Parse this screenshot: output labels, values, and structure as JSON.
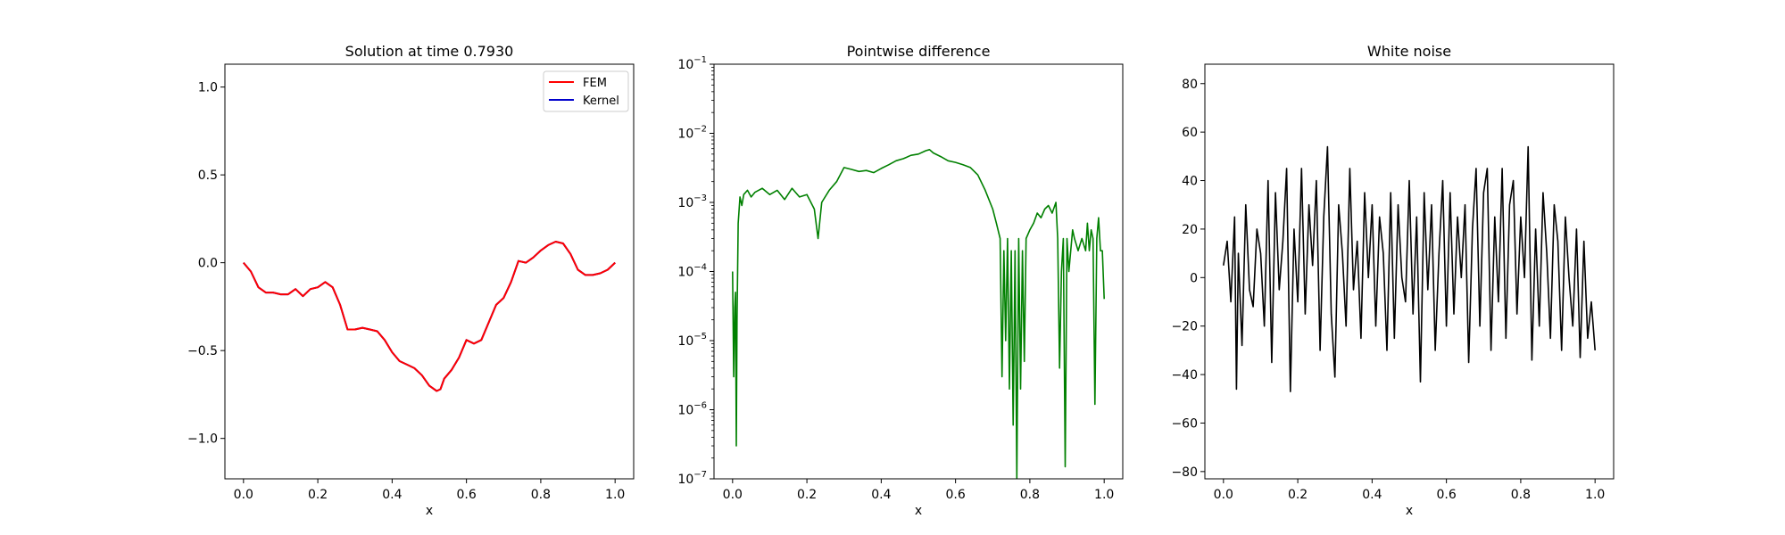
{
  "chart_data": [
    {
      "type": "line",
      "title": "Solution at time 0.7930",
      "xlabel": "x",
      "ylabel": "",
      "xlim": [
        -0.05,
        1.05
      ],
      "ylim": [
        -1.23,
        1.13
      ],
      "xticks": [
        0.0,
        0.2,
        0.4,
        0.6,
        0.8,
        1.0
      ],
      "xtick_labels": [
        "0.0",
        "0.2",
        "0.4",
        "0.6",
        "0.8",
        "1.0"
      ],
      "yticks": [
        -1.0,
        -0.5,
        0.0,
        0.5,
        1.0
      ],
      "ytick_labels": [
        "−1.0",
        "−0.5",
        "0.0",
        "0.5",
        "1.0"
      ],
      "legend": {
        "position": "upper right",
        "entries": [
          {
            "name": "FEM",
            "color": "#ff0000"
          },
          {
            "name": "Kernel",
            "color": "#0000cc"
          }
        ]
      },
      "series": [
        {
          "name": "Kernel",
          "color": "#0000cc",
          "x": [
            0.0,
            0.02,
            0.04,
            0.06,
            0.08,
            0.1,
            0.12,
            0.14,
            0.16,
            0.18,
            0.2,
            0.22,
            0.24,
            0.26,
            0.28,
            0.3,
            0.32,
            0.34,
            0.36,
            0.38,
            0.4,
            0.42,
            0.44,
            0.46,
            0.48,
            0.5,
            0.52,
            0.53,
            0.54,
            0.56,
            0.58,
            0.6,
            0.62,
            0.64,
            0.66,
            0.68,
            0.7,
            0.72,
            0.74,
            0.76,
            0.78,
            0.8,
            0.82,
            0.84,
            0.86,
            0.88,
            0.9,
            0.92,
            0.94,
            0.96,
            0.98,
            1.0
          ],
          "y": [
            0.0,
            -0.05,
            -0.14,
            -0.17,
            -0.17,
            -0.18,
            -0.18,
            -0.15,
            -0.19,
            -0.15,
            -0.14,
            -0.11,
            -0.14,
            -0.24,
            -0.38,
            -0.38,
            -0.37,
            -0.38,
            -0.39,
            -0.44,
            -0.51,
            -0.56,
            -0.58,
            -0.6,
            -0.64,
            -0.7,
            -0.73,
            -0.72,
            -0.66,
            -0.61,
            -0.54,
            -0.44,
            -0.46,
            -0.44,
            -0.34,
            -0.24,
            -0.2,
            -0.11,
            0.01,
            0.0,
            0.03,
            0.07,
            0.1,
            0.12,
            0.11,
            0.05,
            -0.04,
            -0.07,
            -0.07,
            -0.06,
            -0.04,
            0.0
          ]
        },
        {
          "name": "FEM",
          "color": "#ff0000",
          "x": [
            0.0,
            0.02,
            0.04,
            0.06,
            0.08,
            0.1,
            0.12,
            0.14,
            0.16,
            0.18,
            0.2,
            0.22,
            0.24,
            0.26,
            0.28,
            0.3,
            0.32,
            0.34,
            0.36,
            0.38,
            0.4,
            0.42,
            0.44,
            0.46,
            0.48,
            0.5,
            0.52,
            0.53,
            0.54,
            0.56,
            0.58,
            0.6,
            0.62,
            0.64,
            0.66,
            0.68,
            0.7,
            0.72,
            0.74,
            0.76,
            0.78,
            0.8,
            0.82,
            0.84,
            0.86,
            0.88,
            0.9,
            0.92,
            0.94,
            0.96,
            0.98,
            1.0
          ],
          "y": [
            0.0,
            -0.05,
            -0.14,
            -0.17,
            -0.17,
            -0.18,
            -0.18,
            -0.15,
            -0.19,
            -0.15,
            -0.14,
            -0.11,
            -0.14,
            -0.24,
            -0.38,
            -0.38,
            -0.37,
            -0.38,
            -0.39,
            -0.44,
            -0.51,
            -0.56,
            -0.58,
            -0.6,
            -0.64,
            -0.7,
            -0.73,
            -0.72,
            -0.66,
            -0.61,
            -0.54,
            -0.44,
            -0.46,
            -0.44,
            -0.34,
            -0.24,
            -0.2,
            -0.11,
            0.01,
            0.0,
            0.03,
            0.07,
            0.1,
            0.12,
            0.11,
            0.05,
            -0.04,
            -0.07,
            -0.07,
            -0.06,
            -0.04,
            0.0
          ]
        }
      ]
    },
    {
      "type": "line",
      "title": "Pointwise difference",
      "xlabel": "x",
      "ylabel": "",
      "yscale": "log",
      "xlim": [
        -0.05,
        1.05
      ],
      "ylim": [
        1e-07,
        0.1
      ],
      "xticks": [
        0.0,
        0.2,
        0.4,
        0.6,
        0.8,
        1.0
      ],
      "xtick_labels": [
        "0.0",
        "0.2",
        "0.4",
        "0.6",
        "0.8",
        "1.0"
      ],
      "yticks": [
        1e-07,
        1e-06,
        1e-05,
        0.0001,
        0.001,
        0.01,
        0.1
      ],
      "ytick_bases": [
        "10",
        "10",
        "10",
        "10",
        "10",
        "10",
        "10"
      ],
      "ytick_exponents": [
        "−7",
        "−6",
        "−5",
        "−4",
        "−3",
        "−2",
        "−1"
      ],
      "series": [
        {
          "color": "#008000",
          "x": [
            0.0,
            0.003,
            0.006,
            0.008,
            0.01,
            0.012,
            0.015,
            0.02,
            0.025,
            0.03,
            0.04,
            0.05,
            0.06,
            0.08,
            0.1,
            0.12,
            0.14,
            0.16,
            0.18,
            0.2,
            0.22,
            0.23,
            0.24,
            0.26,
            0.28,
            0.3,
            0.32,
            0.34,
            0.36,
            0.38,
            0.4,
            0.42,
            0.44,
            0.46,
            0.48,
            0.5,
            0.52,
            0.53,
            0.54,
            0.56,
            0.58,
            0.6,
            0.62,
            0.64,
            0.66,
            0.68,
            0.7,
            0.71,
            0.72,
            0.725,
            0.73,
            0.735,
            0.74,
            0.745,
            0.75,
            0.755,
            0.76,
            0.765,
            0.77,
            0.775,
            0.78,
            0.785,
            0.79,
            0.8,
            0.81,
            0.82,
            0.83,
            0.84,
            0.85,
            0.86,
            0.87,
            0.875,
            0.88,
            0.885,
            0.89,
            0.895,
            0.9,
            0.905,
            0.91,
            0.915,
            0.92,
            0.93,
            0.94,
            0.95,
            0.955,
            0.96,
            0.965,
            0.97,
            0.975,
            0.98,
            0.985,
            0.99,
            0.995,
            1.0
          ],
          "y": [
            0.0001,
            3e-06,
            3e-05,
            5e-05,
            3e-07,
            2e-05,
            0.0005,
            0.0012,
            0.0009,
            0.0013,
            0.0015,
            0.0012,
            0.0014,
            0.0016,
            0.0013,
            0.0015,
            0.0011,
            0.0016,
            0.0012,
            0.0013,
            0.0008,
            0.0003,
            0.001,
            0.0015,
            0.002,
            0.0032,
            0.003,
            0.0028,
            0.0029,
            0.0027,
            0.0031,
            0.0035,
            0.004,
            0.0043,
            0.0048,
            0.005,
            0.0056,
            0.0058,
            0.0052,
            0.0046,
            0.004,
            0.0038,
            0.0035,
            0.0032,
            0.0025,
            0.0015,
            0.0008,
            0.0005,
            0.0003,
            3e-06,
            0.0002,
            1e-05,
            0.0003,
            2e-06,
            0.0002,
            6e-07,
            0.0002,
            1e-07,
            0.0003,
            2e-06,
            0.0002,
            5e-06,
            0.0003,
            0.0004,
            0.0005,
            0.0007,
            0.0006,
            0.0008,
            0.0009,
            0.0007,
            0.001,
            0.0003,
            4e-06,
            0.0001,
            0.0003,
            1.5e-07,
            0.0003,
            0.0001,
            0.0002,
            0.0004,
            0.0003,
            0.0002,
            0.0003,
            0.0002,
            0.0005,
            0.0002,
            0.0004,
            0.0003,
            1.2e-06,
            0.0003,
            0.0006,
            0.0002,
            0.0002,
            4e-05
          ]
        }
      ]
    },
    {
      "type": "line",
      "title": "White noise",
      "xlabel": "x",
      "ylabel": "",
      "xlim": [
        -0.05,
        1.05
      ],
      "ylim": [
        -83,
        88
      ],
      "xticks": [
        0.0,
        0.2,
        0.4,
        0.6,
        0.8,
        1.0
      ],
      "xtick_labels": [
        "0.0",
        "0.2",
        "0.4",
        "0.6",
        "0.8",
        "1.0"
      ],
      "yticks": [
        -80,
        -60,
        -40,
        -20,
        0,
        20,
        40,
        60,
        80
      ],
      "ytick_labels": [
        "−80",
        "−60",
        "−40",
        "−20",
        "0",
        "20",
        "40",
        "60",
        "80"
      ],
      "series": [
        {
          "color": "#000000",
          "x": [
            0.0,
            0.01,
            0.02,
            0.03,
            0.035,
            0.04,
            0.05,
            0.06,
            0.07,
            0.08,
            0.09,
            0.1,
            0.11,
            0.12,
            0.13,
            0.14,
            0.15,
            0.16,
            0.17,
            0.18,
            0.19,
            0.2,
            0.21,
            0.22,
            0.23,
            0.24,
            0.25,
            0.26,
            0.27,
            0.28,
            0.29,
            0.3,
            0.31,
            0.32,
            0.33,
            0.34,
            0.35,
            0.36,
            0.37,
            0.38,
            0.39,
            0.4,
            0.41,
            0.42,
            0.43,
            0.44,
            0.45,
            0.46,
            0.47,
            0.48,
            0.49,
            0.5,
            0.51,
            0.52,
            0.53,
            0.54,
            0.55,
            0.56,
            0.57,
            0.58,
            0.59,
            0.6,
            0.61,
            0.62,
            0.63,
            0.64,
            0.65,
            0.66,
            0.67,
            0.68,
            0.69,
            0.7,
            0.71,
            0.72,
            0.73,
            0.74,
            0.75,
            0.76,
            0.77,
            0.78,
            0.79,
            0.8,
            0.81,
            0.82,
            0.83,
            0.84,
            0.85,
            0.86,
            0.87,
            0.88,
            0.89,
            0.9,
            0.91,
            0.92,
            0.93,
            0.94,
            0.95,
            0.96,
            0.97,
            0.98,
            0.99,
            1.0
          ],
          "y": [
            5,
            15,
            -10,
            25,
            -46,
            10,
            -28,
            30,
            -5,
            -12,
            20,
            10,
            -20,
            40,
            -35,
            35,
            -5,
            15,
            45,
            -47,
            20,
            -10,
            45,
            -15,
            30,
            5,
            40,
            -30,
            25,
            54,
            -15,
            -41,
            30,
            10,
            -20,
            45,
            -5,
            15,
            -25,
            35,
            0,
            30,
            -20,
            25,
            10,
            -30,
            35,
            -25,
            30,
            0,
            -10,
            40,
            -15,
            25,
            -43,
            35,
            -5,
            30,
            -30,
            10,
            40,
            -20,
            35,
            -15,
            25,
            0,
            30,
            -35,
            20,
            45,
            -20,
            35,
            45,
            -30,
            25,
            -10,
            45,
            -25,
            30,
            40,
            -15,
            25,
            0,
            54,
            -34,
            20,
            -20,
            35,
            10,
            -25,
            30,
            15,
            -30,
            25,
            0,
            -20,
            20,
            -33,
            15,
            -25,
            -10,
            -30
          ]
        }
      ]
    }
  ]
}
